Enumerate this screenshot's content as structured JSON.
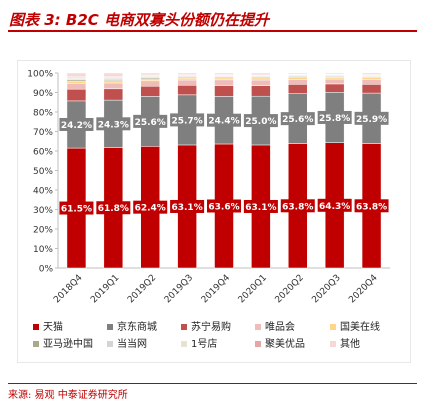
{
  "header": {
    "title": "图表 3:  B2C 电商双寡头份额仍在提升"
  },
  "source": {
    "text": "来源: 易观  中泰证券研究所"
  },
  "chart_data": {
    "type": "bar",
    "stacked": true,
    "title": "图表 3:  B2C 电商双寡头份额仍在提升",
    "xlabel": "",
    "ylabel": "",
    "ylim": [
      0,
      100
    ],
    "y_ticks": [
      "0%",
      "10%",
      "20%",
      "30%",
      "40%",
      "50%",
      "60%",
      "70%",
      "80%",
      "90%",
      "100%"
    ],
    "categories": [
      "2018Q4",
      "2019Q1",
      "2019Q2",
      "2019Q3",
      "2019Q4",
      "2020Q1",
      "2020Q2",
      "2020Q3",
      "2020Q4"
    ],
    "grid": false,
    "legend_position": "bottom",
    "series": [
      {
        "name": "天猫",
        "color": "#c00000",
        "values": [
          61.5,
          61.8,
          62.4,
          63.1,
          63.6,
          63.1,
          63.8,
          64.3,
          63.8
        ],
        "labels": [
          "61.5%",
          "61.8%",
          "62.4%",
          "63.1%",
          "63.6%",
          "63.1%",
          "63.8%",
          "64.3%",
          "63.8%"
        ]
      },
      {
        "name": "京东商城",
        "color": "#7f7f7f",
        "values": [
          24.2,
          24.3,
          25.6,
          25.7,
          24.4,
          25.0,
          25.6,
          25.8,
          25.9
        ],
        "labels": [
          "24.2%",
          "24.3%",
          "25.6%",
          "25.7%",
          "24.4%",
          "25.0%",
          "25.6%",
          "25.8%",
          "25.9%"
        ]
      },
      {
        "name": "苏宁易购",
        "color": "#c0504d",
        "values": [
          6.0,
          5.8,
          5.2,
          4.9,
          5.6,
          5.4,
          4.8,
          4.3,
          4.5
        ]
      },
      {
        "name": "唯品会",
        "color": "#f0bcb8",
        "values": [
          3.0,
          3.0,
          2.8,
          2.7,
          2.9,
          2.9,
          2.5,
          2.5,
          2.5
        ]
      },
      {
        "name": "国美在线",
        "color": "#ffd58a",
        "values": [
          1.2,
          1.2,
          1.0,
          1.0,
          1.0,
          1.1,
          1.0,
          0.9,
          0.9
        ]
      },
      {
        "name": "亚马逊中国",
        "color": "#a9a98c",
        "values": [
          0.7,
          0.6,
          0.6,
          0.5,
          0.5,
          0.5,
          0.5,
          0.4,
          0.4
        ]
      },
      {
        "name": "当当网",
        "color": "#d5d5d5",
        "values": [
          0.6,
          0.6,
          0.6,
          0.5,
          0.5,
          0.5,
          0.5,
          0.5,
          0.5
        ]
      },
      {
        "name": "1号店",
        "color": "#e6e3cf",
        "values": [
          0.5,
          0.5,
          0.4,
          0.4,
          0.4,
          0.4,
          0.4,
          0.4,
          0.4
        ]
      },
      {
        "name": "聚美优品",
        "color": "#e6a6a3",
        "values": [
          0.5,
          0.4,
          0.4,
          0.4,
          0.3,
          0.4,
          0.3,
          0.3,
          0.3
        ]
      },
      {
        "name": "其他",
        "color": "#f6d9d7",
        "values": [
          1.8,
          1.8,
          1.0,
          0.8,
          0.8,
          0.7,
          0.6,
          0.6,
          0.8
        ]
      }
    ]
  }
}
